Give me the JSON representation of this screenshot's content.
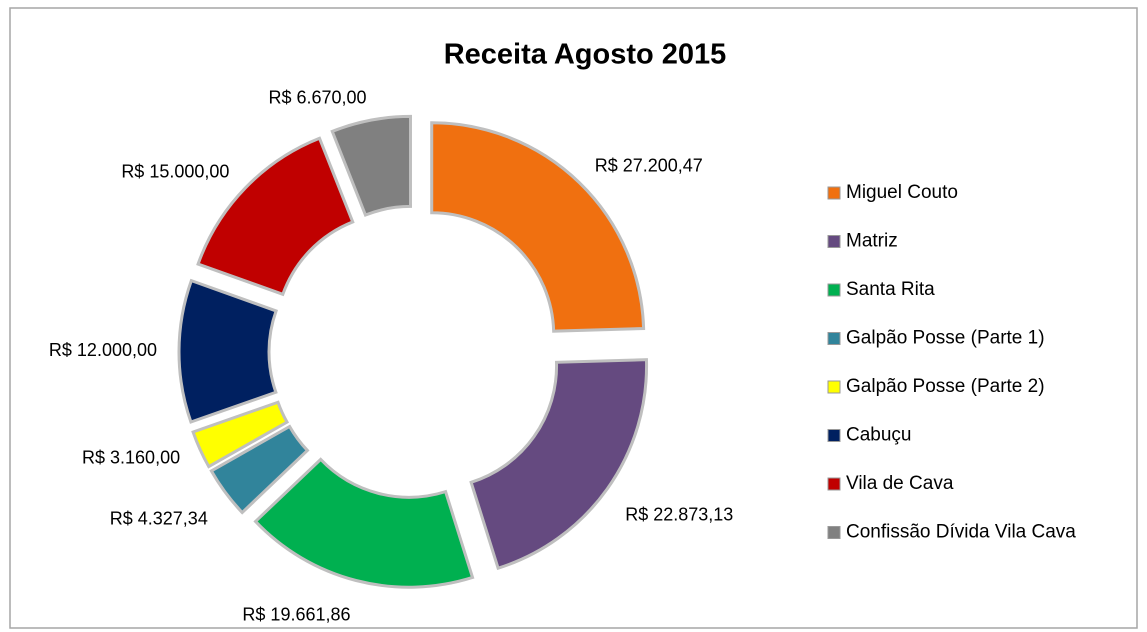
{
  "chart_data": {
    "type": "donut",
    "title": "Receita Agosto 2015",
    "categories": [
      "Miguel Couto",
      "Matriz",
      "Santa Rita",
      "Galpão Posse (Parte 1)",
      "Galpão Posse (Parte 2)",
      "Cabuçu",
      "Vila de Cava",
      "Confissão Dívida Vila Cava"
    ],
    "values": [
      27200.47,
      22873.13,
      19661.86,
      4327.34,
      3160,
      12000,
      15000,
      6670
    ],
    "value_labels": [
      "R$ 27.200,47",
      "R$ 22.873,13",
      "R$ 19.661,86",
      "R$ 4.327,34",
      "R$ 3.160,00",
      "R$ 12.000,00",
      "R$ 15.000,00",
      "R$ 6.670,00"
    ],
    "colors": [
      "#f07010",
      "#654a80",
      "#00b050",
      "#31849b",
      "#ffff00",
      "#002060",
      "#c00000",
      "#808080"
    ],
    "legend": "right"
  }
}
